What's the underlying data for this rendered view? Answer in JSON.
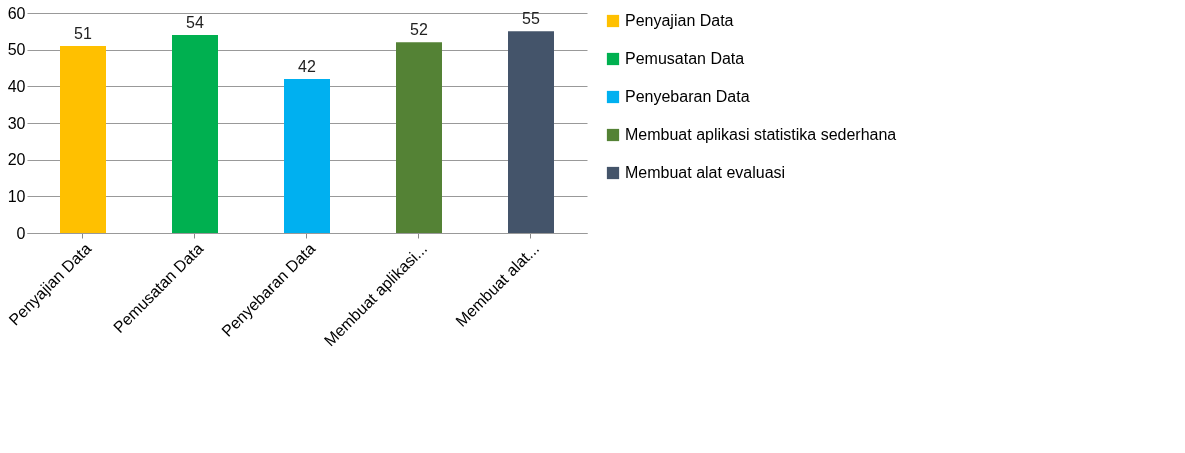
{
  "chart_data": {
    "type": "bar",
    "categories": [
      "Penyajian Data",
      "Pemusatan Data",
      "Penyebaran Data",
      "Membuat aplikasi...",
      "Membuat alat..."
    ],
    "series": [
      {
        "name": "Penyajian Data",
        "color": "#ffc000",
        "values": [
          51,
          null,
          null,
          null,
          null
        ]
      },
      {
        "name": "Pemusatan Data",
        "color": "#00b050",
        "values": [
          null,
          54,
          null,
          null,
          null
        ]
      },
      {
        "name": "Penyebaran Data",
        "color": "#00b0f0",
        "values": [
          null,
          null,
          42,
          null,
          null
        ]
      },
      {
        "name": "Membuat aplikasi statistika sederhana",
        "color": "#548235",
        "values": [
          null,
          null,
          null,
          52,
          null
        ]
      },
      {
        "name": "Membuat alat evaluasi",
        "color": "#44546a",
        "values": [
          null,
          null,
          null,
          null,
          55
        ]
      }
    ],
    "ylim": [
      0,
      60
    ],
    "yticks": [
      0,
      10,
      20,
      30,
      40,
      50,
      60
    ],
    "grid": "y",
    "legend": "right",
    "data_labels": true
  }
}
